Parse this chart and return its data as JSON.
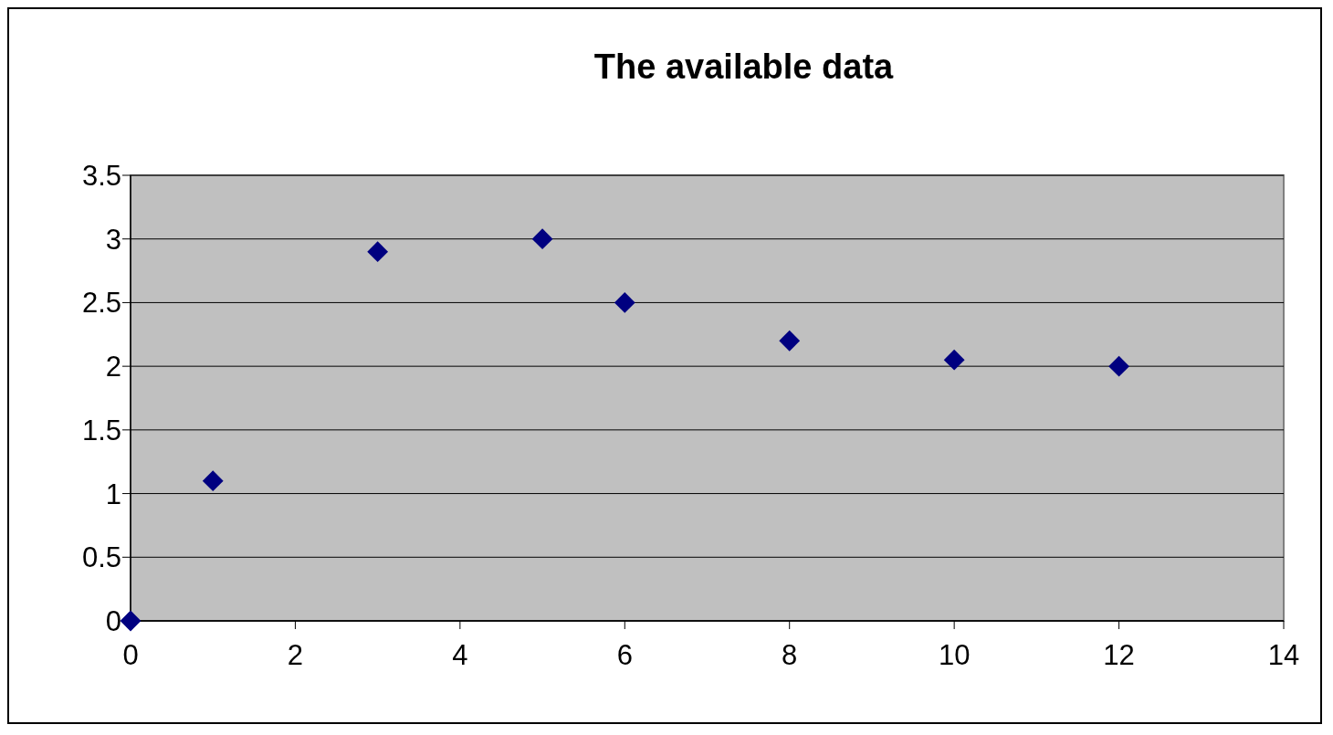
{
  "chart_data": {
    "type": "scatter",
    "title": "The available data",
    "x": [
      0,
      1,
      3,
      5,
      6,
      8,
      10,
      12
    ],
    "series": [
      {
        "color": "#000080",
        "values": [
          0,
          1.1,
          2.9,
          3.0,
          2.5,
          2.2,
          2.05,
          2.0
        ]
      }
    ],
    "xlim": [
      0,
      14
    ],
    "xticks": [
      0,
      2,
      4,
      6,
      8,
      10,
      12,
      14
    ],
    "ylim": [
      0,
      3.5
    ],
    "yticks": [
      0,
      0.5,
      1,
      1.5,
      2,
      2.5,
      3,
      3.5
    ],
    "grid": "y",
    "marker": "diamond"
  }
}
